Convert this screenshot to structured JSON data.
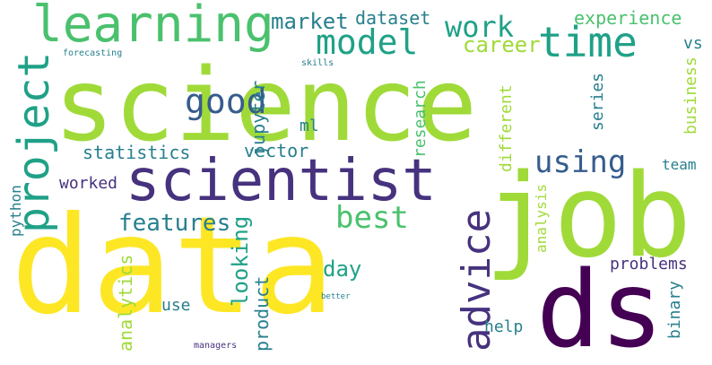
{
  "colors": {
    "yellow": "#fde725",
    "lime": "#a0da39",
    "green": "#4ac16d",
    "teal": "#1fa187",
    "cyan": "#277f8e",
    "blue": "#365c8d",
    "indigo": "#46327e",
    "purple": "#440154"
  },
  "words": {
    "science": "science",
    "data": "data",
    "job": "job",
    "ds": "ds",
    "scientist": "scientist",
    "learning": "learning",
    "model": "model",
    "time": "time",
    "project": "project",
    "good": "good",
    "using": "using",
    "advice": "advice",
    "best": "best",
    "work": "work",
    "market": "market",
    "dataset": "dataset",
    "career": "career",
    "experience": "experience",
    "vs": "vs",
    "jupyter": "jupyter",
    "ml": "ml",
    "statistics": "statistics",
    "vector": "vector",
    "worked": "worked",
    "features": "features",
    "day": "day",
    "looking": "looking",
    "analytics": "analytics",
    "use": "use",
    "product": "product",
    "python": "python",
    "research": "research",
    "different": "different",
    "series": "series",
    "business": "business",
    "team": "team",
    "analysis": "analysis",
    "problems": "problems",
    "binary": "binary",
    "help": "help",
    "forecasting": "forecasting",
    "skills": "skills",
    "better": "better",
    "managers": "managers"
  }
}
